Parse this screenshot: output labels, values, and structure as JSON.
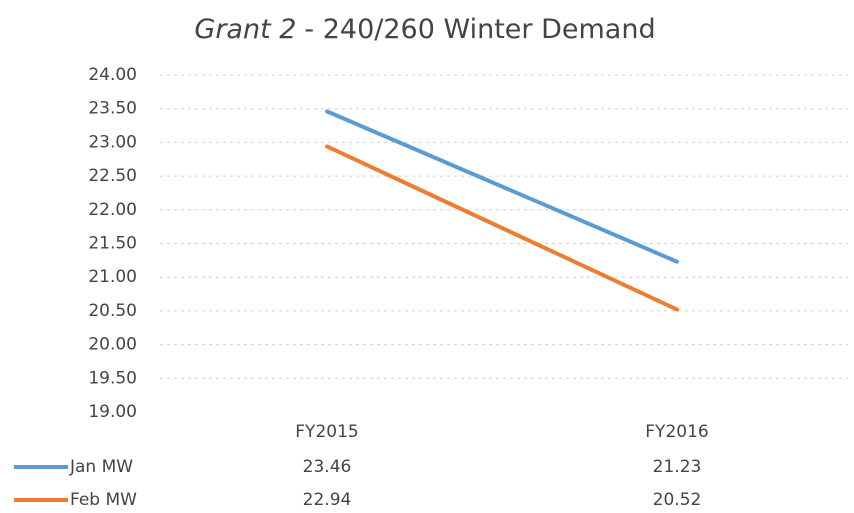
{
  "chart_data": {
    "type": "line",
    "title": {
      "italic": "Grant 2",
      "rest": "- 240/260 Winter Demand"
    },
    "categories": [
      "FY2015",
      "FY2016"
    ],
    "series": [
      {
        "name": "Jan MW",
        "color": "#5b9bd5",
        "values": [
          23.46,
          21.23
        ]
      },
      {
        "name": "Feb MW",
        "color": "#ed7d31",
        "values": [
          22.94,
          20.52
        ]
      }
    ],
    "ylim": [
      19,
      24
    ],
    "yticks": [
      {
        "value": 19,
        "label": "19.00"
      },
      {
        "value": 19.5,
        "label": "19.50"
      },
      {
        "value": 20,
        "label": "20.00"
      },
      {
        "value": 20.5,
        "label": "20.50"
      },
      {
        "value": 21,
        "label": "21.00"
      },
      {
        "value": 21.5,
        "label": "21.50"
      },
      {
        "value": 22,
        "label": "22.00"
      },
      {
        "value": 22.5,
        "label": "22.50"
      },
      {
        "value": 23,
        "label": "23.00"
      },
      {
        "value": 23.5,
        "label": "23.50"
      },
      {
        "value": 24,
        "label": "24.00"
      }
    ],
    "grid": true,
    "data_table": true
  }
}
